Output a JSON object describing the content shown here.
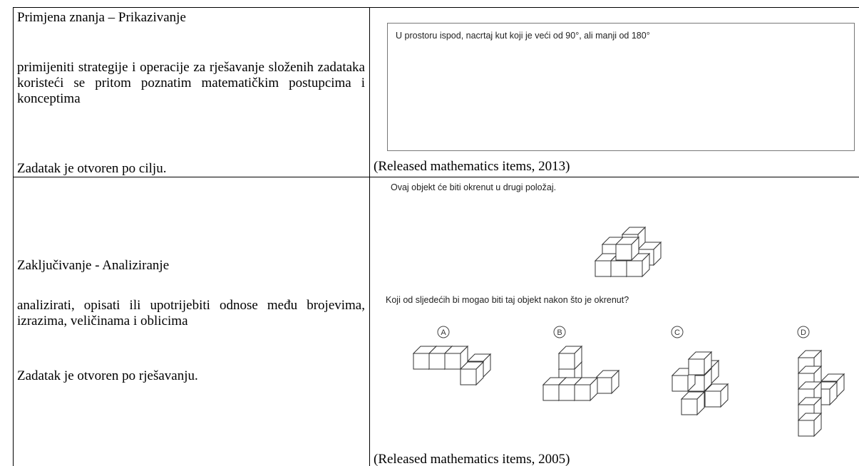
{
  "table": {
    "rows": [
      {
        "left": {
          "title": "Primjena znanja – Prikazivanje",
          "description": "primijeniti strategije i operacije za rješavanje složenih zadataka koristeći se pritom poznatim matematičkim postupcima i konceptima",
          "note": "Zadatak je otvoren po cilju."
        },
        "right": {
          "prompt": "U prostoru ispod, nacrtaj kut koji je veći od 90°, ali manji od 180°",
          "source": "(Released mathematics items, 2013)"
        }
      },
      {
        "left": {
          "title": "Zaključivanje - Analiziranje",
          "description": "analizirati, opisati ili upotrijebiti odnose među brojevima, izrazima, veličinama i oblicima",
          "note": "Zadatak je otvoren po rješavanju."
        },
        "right": {
          "intro": "Ovaj objekt će biti okrenut u drugi položaj.",
          "question": "Koji od sljedećih bi mogao biti taj objekt nakon što je okrenut?",
          "options": [
            "A",
            "B",
            "C",
            "D"
          ],
          "source": "(Released mathematics items, 2005)"
        }
      }
    ]
  }
}
